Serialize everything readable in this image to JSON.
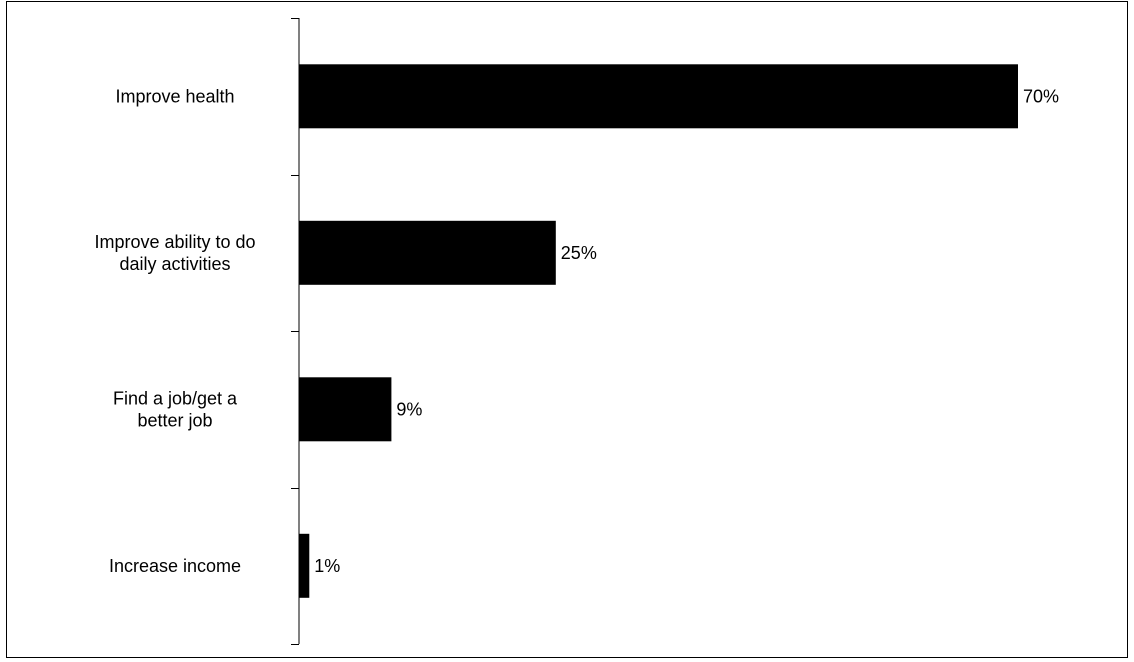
{
  "chart_data": {
    "type": "bar",
    "orientation": "horizontal",
    "categories": [
      [
        "Improve health"
      ],
      [
        "Improve ability to do",
        "daily activities"
      ],
      [
        "Find a job/get a",
        "better job"
      ],
      [
        "Increase income"
      ]
    ],
    "values": [
      70,
      25,
      9,
      1
    ],
    "value_labels": [
      "70%",
      "25%",
      "9%",
      "1%"
    ],
    "unit": "%",
    "xlim": [
      0,
      70
    ],
    "grid": false,
    "legend": "none",
    "bar_color": "#000000"
  }
}
